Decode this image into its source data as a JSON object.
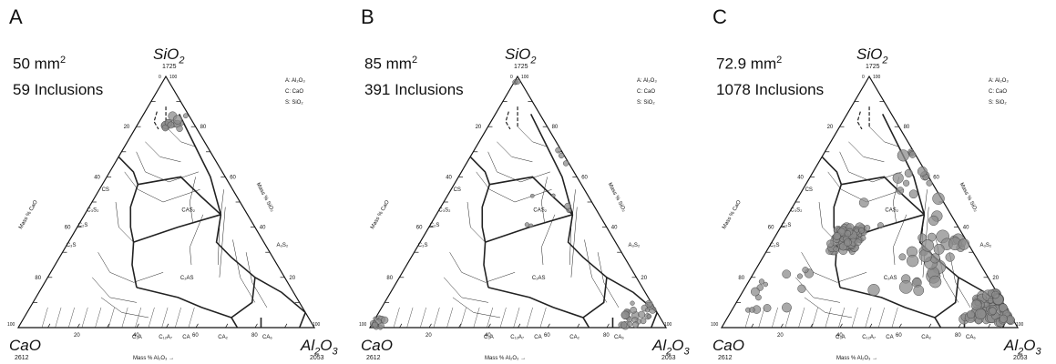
{
  "panels": [
    {
      "letter": "A",
      "area": "50 mm",
      "area_exp": "2",
      "inclusions": "59 Inclusions"
    },
    {
      "letter": "B",
      "area": "85 mm",
      "area_exp": "2",
      "inclusions": "391 Inclusions"
    },
    {
      "letter": "C",
      "area": "72.9 mm",
      "area_exp": "2",
      "inclusions": "1078 Inclusions"
    }
  ],
  "vertices": {
    "top": {
      "name": "SiO",
      "sub": "2",
      "temp": "1725"
    },
    "left": {
      "name": "CaO",
      "temp": "2612"
    },
    "right": {
      "name": "Al",
      "sub1": "2",
      "mid": "O",
      "sub2": "3",
      "temp": "2053"
    }
  },
  "key": [
    "A: Al₂O₃",
    "C: CaO",
    "S: SiO₂"
  ],
  "axes": {
    "bottom": "Mass %  Al₂O₃",
    "left": "Mass %  CaO",
    "right": "Mass %  SiO₂"
  },
  "phases": [
    "CS",
    "C₃S₂",
    "C₂S",
    "C₃S",
    "CAS₂",
    "A₃S₂",
    "C₂AS",
    "C₃A",
    "C₁₂A₇",
    "CA",
    "CA₂",
    "CA₆"
  ],
  "colors": {
    "inclusion_fill": "#8c8c8c",
    "inclusion_stroke": "#4a4a4a",
    "line": "#222222"
  }
}
